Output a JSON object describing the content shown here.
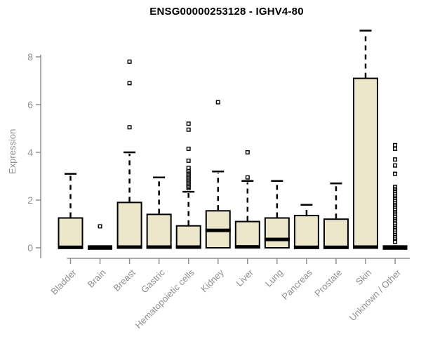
{
  "chart_data": {
    "type": "boxplot",
    "title": "ENSG00000253128 - IGHV4-80",
    "ylabel": "Expression",
    "xlabel": "",
    "yticks": [
      0,
      2,
      4,
      6,
      8
    ],
    "ylim": [
      0,
      9.3
    ],
    "grid": false,
    "legend_position": "none",
    "box_fill": "#ece7cb",
    "box_border": "#000000",
    "median_color": "#000000",
    "whisker_color": "#000000",
    "outlier_shape": "open-square",
    "axis_color": "#8f8f8f",
    "text_color": "#8f8f8f",
    "title_color": "#000000",
    "series": [
      {
        "category": "Bladder",
        "q1": 0,
        "median": 0.02,
        "q3": 1.25,
        "whisker_low": 0,
        "whisker_high": 3.1,
        "outliers": []
      },
      {
        "category": "Brain",
        "q1": 0,
        "median": 0.02,
        "q3": 0.03,
        "whisker_low": 0,
        "whisker_high": 0.03,
        "outliers": [
          0.9
        ]
      },
      {
        "category": "Breast",
        "q1": 0,
        "median": 0.03,
        "q3": 1.9,
        "whisker_low": 0,
        "whisker_high": 4.0,
        "outliers": [
          5.05,
          6.9,
          7.8
        ]
      },
      {
        "category": "Gastric",
        "q1": 0,
        "median": 0.03,
        "q3": 1.4,
        "whisker_low": 0,
        "whisker_high": 2.95,
        "outliers": []
      },
      {
        "category": "Hematopoietic cells",
        "q1": 0,
        "median": 0.03,
        "q3": 0.92,
        "whisker_low": 0,
        "whisker_high": 2.35,
        "outliers": [
          2.5,
          2.56,
          2.62,
          2.68,
          2.74,
          2.8,
          2.86,
          2.92,
          2.98,
          3.04,
          3.1,
          3.16,
          3.22,
          3.28,
          3.35,
          3.65,
          4.15,
          4.95,
          5.2
        ]
      },
      {
        "category": "Kidney",
        "q1": 0,
        "median": 0.73,
        "q3": 1.55,
        "whisker_low": 0,
        "whisker_high": 3.2,
        "outliers": [
          6.1
        ]
      },
      {
        "category": "Liver",
        "q1": 0,
        "median": 0.04,
        "q3": 1.1,
        "whisker_low": 0,
        "whisker_high": 2.8,
        "outliers": [
          2.95,
          4.0
        ]
      },
      {
        "category": "Lung",
        "q1": 0,
        "median": 0.35,
        "q3": 1.25,
        "whisker_low": 0,
        "whisker_high": 2.8,
        "outliers": []
      },
      {
        "category": "Pancreas",
        "q1": 0,
        "median": 0.02,
        "q3": 1.35,
        "whisker_low": 0,
        "whisker_high": 1.8,
        "outliers": []
      },
      {
        "category": "Prostate",
        "q1": 0,
        "median": 0.02,
        "q3": 1.2,
        "whisker_low": 0,
        "whisker_high": 2.7,
        "outliers": []
      },
      {
        "category": "Skin",
        "q1": 0,
        "median": 0.03,
        "q3": 7.1,
        "whisker_low": 0,
        "whisker_high": 9.1,
        "outliers": []
      },
      {
        "category": "Unknown / Other",
        "q1": 0,
        "median": 0.02,
        "q3": 0.03,
        "whisker_low": 0,
        "whisker_high": 0.03,
        "outliers": [
          4.3,
          4.15,
          3.7,
          3.45,
          3.1,
          2.55,
          2.47,
          2.4,
          2.33,
          2.25,
          2.18,
          2.1,
          2.03,
          1.95,
          1.88,
          1.8,
          1.73,
          1.65,
          1.58,
          1.5,
          1.43,
          1.35,
          1.28,
          1.2,
          1.13,
          1.05,
          0.98,
          0.9,
          0.83,
          0.75,
          0.68,
          0.6,
          0.53,
          0.45,
          0.38,
          0.3,
          0.25
        ]
      }
    ]
  }
}
